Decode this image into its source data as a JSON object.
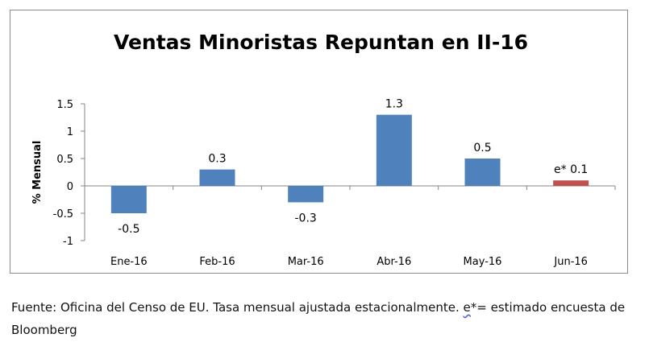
{
  "chart_data": {
    "type": "bar",
    "title": "Ventas Minoristas Repuntan en II-16",
    "ylabel": "% Mensual",
    "xlabel": "",
    "categories": [
      "Ene-16",
      "Feb-16",
      "Mar-16",
      "Abr-16",
      "May-16",
      "Jun-16"
    ],
    "values": [
      -0.5,
      0.3,
      -0.3,
      1.3,
      0.5,
      0.1
    ],
    "data_labels": [
      "-0.5",
      "0.3",
      "-0.3",
      "1.3",
      "0.5",
      "e* 0.1"
    ],
    "bar_colors": [
      "#4f81bd",
      "#4f81bd",
      "#4f81bd",
      "#4f81bd",
      "#4f81bd",
      "#c0504d"
    ],
    "ylim": [
      -1,
      1.5
    ],
    "yticks": [
      1.5,
      1,
      0.5,
      0,
      -0.5,
      -1
    ],
    "ytick_labels": [
      "1.5",
      "1",
      "0.5",
      "0",
      "-0.5",
      "-1"
    ],
    "grid": false,
    "legend": "none"
  },
  "footnote": {
    "before": "Fuente: Oficina del Censo de EU. Tasa mensual ajustada estacionalmente. ",
    "marked": "e",
    "after": "*= estimado encuesta de Bloomberg"
  }
}
